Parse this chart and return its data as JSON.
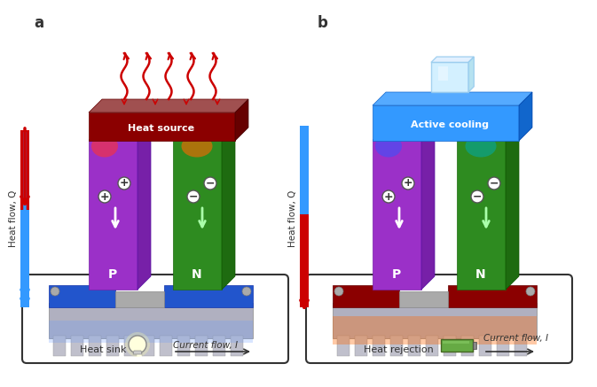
{
  "bg_color": "#ffffff",
  "panel_a": {
    "label": "a",
    "title": "Heat source",
    "title_color": "#ffffff",
    "title_bg": "#8B0000",
    "top_bar_color": "#A0522D",
    "p_color": "#9B30C8",
    "n_color": "#2E8B20",
    "base_color": "#1E6BB8",
    "sink_color": "#A8A8B0",
    "sink_label": "Heat sink",
    "heat_arrows_color": "#CC0000",
    "flow_arrow_top": "#CC0000",
    "flow_arrow_bottom": "#3399FF",
    "current_label": "Current flow, I",
    "circuit_box_color": "#333333"
  },
  "panel_b": {
    "label": "b",
    "title": "Active cooling",
    "title_color": "#ffffff",
    "title_bg": "#3399FF",
    "top_bar_color": "#5599DD",
    "p_color": "#9B30C8",
    "n_color": "#2E8B20",
    "base_color": "#8B0000",
    "sink_color": "#A8A8B0",
    "sink_label": "Heat rejection",
    "flow_arrow_top": "#3399FF",
    "flow_arrow_bottom": "#CC0000",
    "current_label": "Current flow, I",
    "circuit_box_color": "#333333"
  }
}
